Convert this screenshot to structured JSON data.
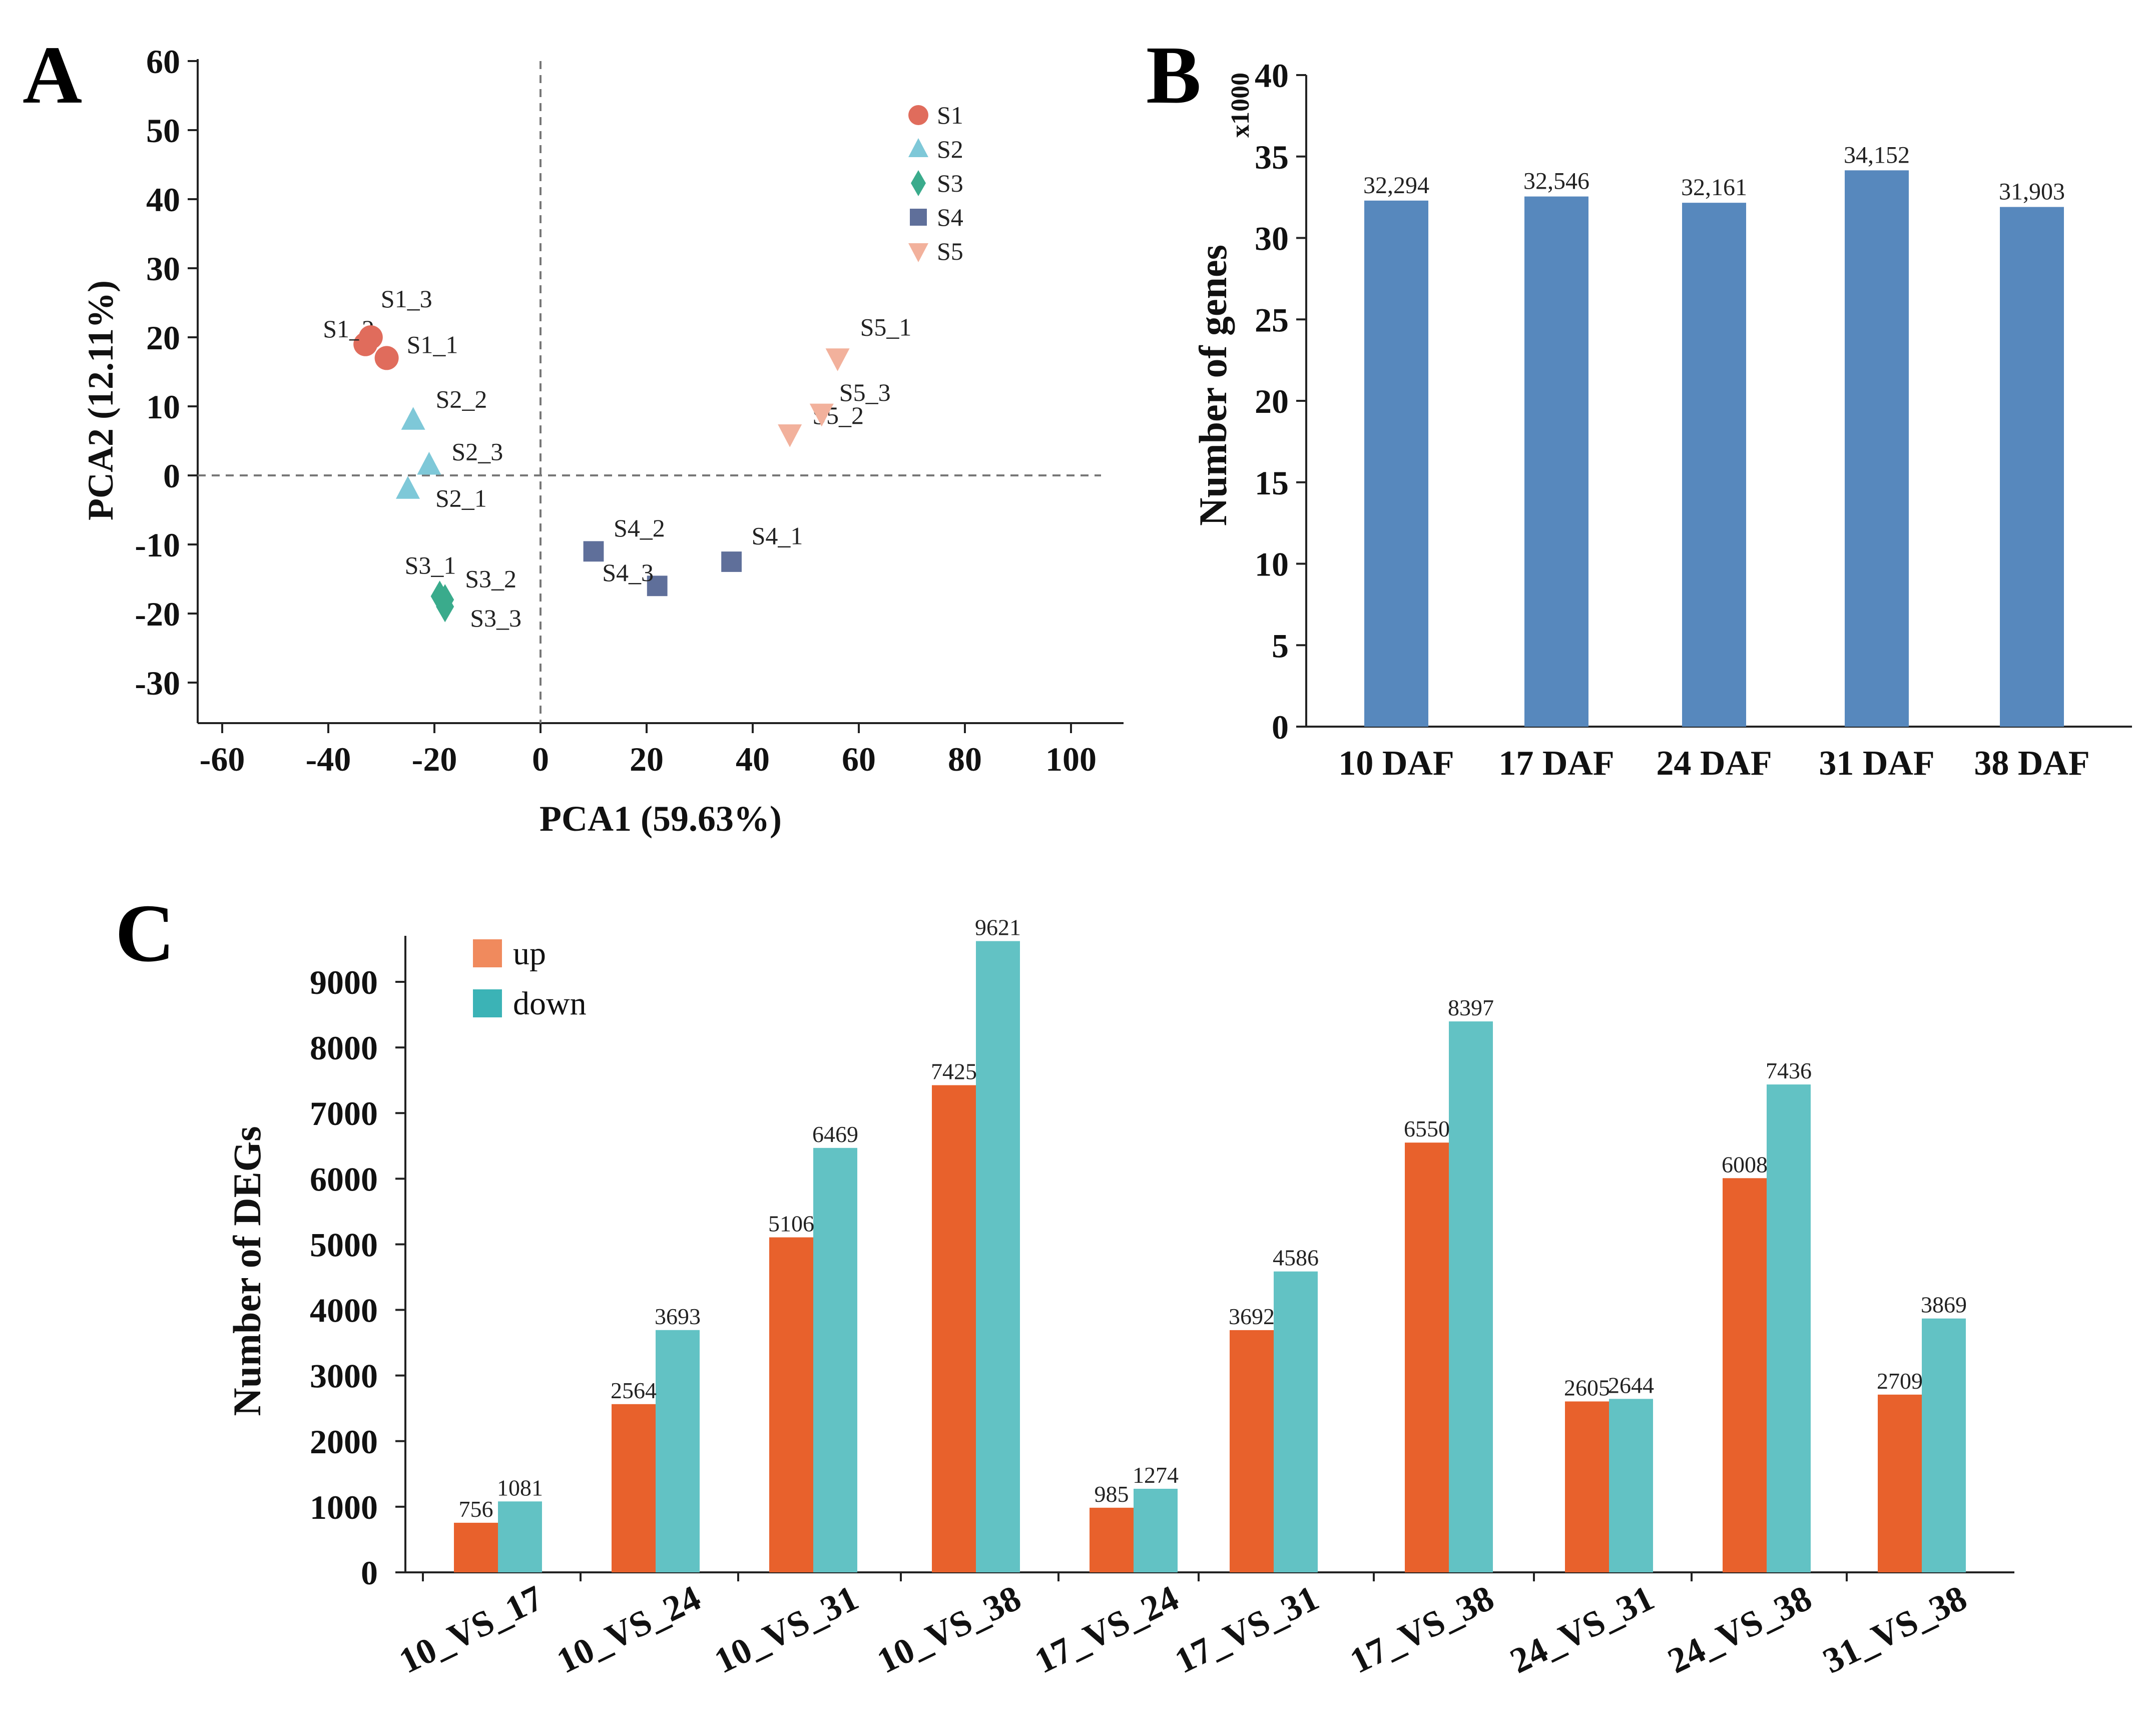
{
  "panels": {
    "a": "A",
    "b": "B",
    "c": "C"
  },
  "colors": {
    "S1": "#e06c5c",
    "S2": "#7ec8d8",
    "S3": "#3aab8c",
    "S4": "#5f6f9a",
    "S5": "#f2b19c",
    "barB": "#5788bd",
    "up": "#e8612c",
    "down": "#62c2c4",
    "legendUp": "#f08a5d",
    "legendDown": "#3bb3b6"
  },
  "chart_data": [
    {
      "type": "scatter",
      "xlabel": "PCA1 (59.63%)",
      "ylabel": "PCA2 (12.11%)",
      "xlim": [
        -65,
        105
      ],
      "ylim": [
        -36,
        60
      ],
      "xticks": [
        -60,
        -40,
        -20,
        0,
        20,
        40,
        60,
        80,
        100
      ],
      "xtick_labels": [
        "-60",
        "-40",
        "-20",
        "0",
        "20",
        "40",
        "60",
        "80",
        "100"
      ],
      "yticks": [
        60,
        50,
        40,
        30,
        20,
        10,
        0,
        -10,
        -20,
        -30
      ],
      "ytick_labels": [
        "60",
        "50",
        "40",
        "30",
        "20",
        "10",
        "0",
        "-10",
        "-20",
        "-30"
      ],
      "reference_lines": {
        "x": 0,
        "y": 0
      },
      "legend": [
        {
          "name": "S1",
          "shape": "circle"
        },
        {
          "name": "S2",
          "shape": "triangle"
        },
        {
          "name": "S3",
          "shape": "diamond"
        },
        {
          "name": "S4",
          "shape": "square"
        },
        {
          "name": "S5",
          "shape": "triangle-down"
        }
      ],
      "points": [
        {
          "group": "S1",
          "label": "S1_1",
          "x": -29,
          "y": 17
        },
        {
          "group": "S1",
          "label": "S1_2",
          "x": -33,
          "y": 19
        },
        {
          "group": "S1",
          "label": "S1_3",
          "x": -32,
          "y": 20
        },
        {
          "group": "S2",
          "label": "S2_1",
          "x": -25,
          "y": -2
        },
        {
          "group": "S2",
          "label": "S2_2",
          "x": -24,
          "y": 8
        },
        {
          "group": "S2",
          "label": "S2_3",
          "x": -21,
          "y": 1.5
        },
        {
          "group": "S3",
          "label": "S3_1",
          "x": -19,
          "y": -17.5
        },
        {
          "group": "S3",
          "label": "S3_2",
          "x": -18,
          "y": -18
        },
        {
          "group": "S3",
          "label": "S3_3",
          "x": -18,
          "y": -19
        },
        {
          "group": "S4",
          "label": "S4_1",
          "x": 36,
          "y": -12.5
        },
        {
          "group": "S4",
          "label": "S4_2",
          "x": 10,
          "y": -11
        },
        {
          "group": "S4",
          "label": "S4_3",
          "x": 22,
          "y": -16
        },
        {
          "group": "S5",
          "label": "S5_1",
          "x": 56,
          "y": 17
        },
        {
          "group": "S5",
          "label": "S5_2",
          "x": 47,
          "y": 6
        },
        {
          "group": "S5",
          "label": "S5_3",
          "x": 53,
          "y": 9
        }
      ]
    },
    {
      "type": "bar",
      "ylabel": "Number of genes",
      "yunit": "x1000",
      "ylim": [
        0,
        40
      ],
      "yticks": [
        0,
        5,
        10,
        15,
        20,
        25,
        30,
        35,
        40
      ],
      "ytick_labels": [
        "0",
        "5",
        "10",
        "15",
        "20",
        "25",
        "30",
        "35",
        "40"
      ],
      "categories": [
        "10 DAF",
        "17 DAF",
        "24 DAF",
        "31 DAF",
        "38 DAF"
      ],
      "values": [
        32.294,
        32.546,
        32.161,
        34.152,
        31.903
      ],
      "value_labels": [
        "32,294",
        "32,546",
        "32,161",
        "34,152",
        "31,903"
      ]
    },
    {
      "type": "bar",
      "ylabel": "Number of DEGs",
      "ylim": [
        0,
        9800
      ],
      "yticks": [
        0,
        1000,
        2000,
        3000,
        4000,
        5000,
        6000,
        7000,
        8000,
        9000
      ],
      "ytick_labels": [
        "0",
        "1000",
        "2000",
        "3000",
        "4000",
        "5000",
        "6000",
        "7000",
        "8000",
        "9000"
      ],
      "categories": [
        "10_VS_17",
        "10_VS_24",
        "10_VS_31",
        "10_VS_38",
        "17_VS_24",
        "17_VS_31",
        "17_VS_38",
        "24_VS_31",
        "24_VS_38",
        "31_VS_38"
      ],
      "series": [
        {
          "name": "up",
          "values": [
            756,
            2564,
            5106,
            7425,
            985,
            3692,
            6550,
            2605,
            6008,
            2709
          ],
          "labels": [
            "756",
            "2564",
            "5106",
            "7425",
            "985",
            "3692",
            "6550",
            "2605",
            "6008",
            "2709"
          ]
        },
        {
          "name": "down",
          "values": [
            1081,
            3693,
            6469,
            9621,
            1274,
            4586,
            8397,
            2644,
            7436,
            3869
          ],
          "labels": [
            "1081",
            "3693",
            "6469",
            "9621",
            "1274",
            "4586",
            "8397",
            "2644",
            "7436",
            "3869"
          ]
        }
      ],
      "legend": "top-left"
    }
  ]
}
